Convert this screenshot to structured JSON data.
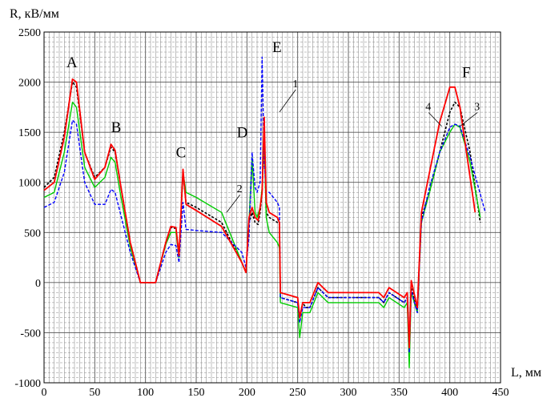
{
  "chart_data": {
    "type": "line",
    "title": "",
    "xlabel": "L, мм",
    "ylabel": "R, кВ/мм",
    "xlim": [
      0,
      450
    ],
    "ylim": [
      -1000,
      2500
    ],
    "x_ticks": [
      0,
      50,
      100,
      150,
      200,
      250,
      300,
      350,
      400,
      450
    ],
    "y_ticks": [
      -1000,
      -500,
      0,
      500,
      1000,
      1500,
      2000,
      2500
    ],
    "x_tick_labels": [
      "0",
      "50",
      "100",
      "150",
      "200",
      "250",
      "300",
      "350",
      "400",
      "450"
    ],
    "y_tick_labels": [
      "-1000",
      "-500",
      "0",
      "500",
      "1000",
      "1500",
      "2000",
      "2500"
    ],
    "grid": true,
    "annotations": [
      {
        "text": "A",
        "x": 22,
        "y": 2150
      },
      {
        "text": "B",
        "x": 66,
        "y": 1500
      },
      {
        "text": "C",
        "x": 130,
        "y": 1250
      },
      {
        "text": "D",
        "x": 190,
        "y": 1450
      },
      {
        "text": "E",
        "x": 225,
        "y": 2300
      },
      {
        "text": "F",
        "x": 412,
        "y": 2050
      }
    ],
    "curve_labels": [
      {
        "text": "1",
        "x": 245,
        "y": 1950,
        "ax": 232,
        "ay": 1700
      },
      {
        "text": "2",
        "x": 190,
        "y": 900,
        "ax": 180,
        "ay": 700
      },
      {
        "text": "3",
        "x": 424,
        "y": 1720,
        "ax": 410,
        "ay": 1560
      },
      {
        "text": "4",
        "x": 376,
        "y": 1720,
        "ax": 392,
        "ay": 1560
      }
    ],
    "series": [
      {
        "color": "#000000",
        "dash": "3,2",
        "x": [
          0,
          10,
          20,
          28,
          32,
          40,
          50,
          60,
          66,
          70,
          75,
          85,
          95,
          100,
          110,
          120,
          125,
          130,
          133,
          137,
          140,
          150,
          175,
          195,
          199,
          202,
          205,
          208,
          211,
          213,
          215,
          217,
          219,
          222,
          230,
          232,
          233,
          250,
          252,
          255,
          258,
          262,
          270,
          280,
          300,
          320,
          330,
          335,
          340,
          355,
          358,
          360,
          362,
          368,
          372,
          380,
          390,
          400,
          405,
          410,
          420,
          430
        ],
        "y": [
          950,
          1050,
          1500,
          2000,
          1950,
          1300,
          1050,
          1150,
          1350,
          1300,
          1000,
          400,
          0,
          0,
          0,
          400,
          550,
          540,
          270,
          1100,
          800,
          750,
          600,
          200,
          100,
          600,
          700,
          600,
          580,
          700,
          900,
          1500,
          700,
          650,
          600,
          580,
          -150,
          -200,
          -350,
          -200,
          -250,
          -250,
          -50,
          -150,
          -150,
          -150,
          -150,
          -200,
          -100,
          -200,
          -150,
          -650,
          -50,
          -280,
          650,
          900,
          1300,
          1700,
          1800,
          1750,
          1300,
          600
        ]
      },
      {
        "color": "#00cc00",
        "dash": "",
        "x": [
          0,
          10,
          20,
          28,
          32,
          40,
          50,
          60,
          66,
          70,
          75,
          85,
          95,
          100,
          110,
          120,
          125,
          130,
          133,
          137,
          140,
          150,
          175,
          195,
          199,
          202,
          205,
          208,
          210,
          213,
          215,
          217,
          219,
          222,
          230,
          232,
          233,
          250,
          252,
          255,
          258,
          262,
          270,
          280,
          300,
          320,
          330,
          335,
          340,
          355,
          358,
          360,
          362,
          368,
          372,
          380,
          390,
          400,
          405,
          410,
          420,
          430
        ],
        "y": [
          850,
          900,
          1300,
          1800,
          1750,
          1150,
          950,
          1050,
          1250,
          1200,
          900,
          350,
          0,
          0,
          0,
          380,
          500,
          500,
          250,
          1100,
          900,
          850,
          700,
          200,
          100,
          600,
          1250,
          700,
          650,
          750,
          950,
          1400,
          650,
          500,
          400,
          350,
          -200,
          -250,
          -550,
          -300,
          -300,
          -300,
          -100,
          -200,
          -200,
          -200,
          -200,
          -250,
          -150,
          -250,
          -200,
          -850,
          -100,
          -300,
          600,
          900,
          1300,
          1500,
          1580,
          1550,
          1200,
          650
        ]
      },
      {
        "color": "#0000ff",
        "dash": "4,2",
        "x": [
          0,
          10,
          20,
          28,
          32,
          40,
          50,
          60,
          66,
          70,
          75,
          85,
          95,
          100,
          110,
          120,
          125,
          130,
          133,
          137,
          140,
          150,
          175,
          195,
          199,
          202,
          205,
          208,
          210,
          213,
          215,
          217,
          219,
          222,
          230,
          232,
          233,
          250,
          252,
          255,
          258,
          262,
          270,
          280,
          300,
          320,
          330,
          335,
          340,
          355,
          358,
          360,
          362,
          368,
          372,
          380,
          390,
          400,
          405,
          410,
          420,
          435
        ],
        "y": [
          750,
          800,
          1100,
          1620,
          1580,
          1000,
          780,
          780,
          930,
          900,
          700,
          300,
          0,
          0,
          0,
          300,
          380,
          370,
          200,
          800,
          530,
          520,
          500,
          300,
          150,
          450,
          1300,
          950,
          900,
          1000,
          2250,
          1200,
          900,
          900,
          800,
          750,
          -150,
          -200,
          -400,
          -250,
          -250,
          -250,
          -50,
          -150,
          -150,
          -150,
          -150,
          -200,
          -100,
          -200,
          -150,
          -700,
          -80,
          -300,
          600,
          950,
          1300,
          1550,
          1580,
          1560,
          1250,
          700
        ]
      },
      {
        "color": "#ff0000",
        "dash": "",
        "x": [
          0,
          10,
          20,
          28,
          32,
          40,
          50,
          60,
          66,
          70,
          75,
          85,
          95,
          100,
          110,
          120,
          125,
          130,
          133,
          137,
          140,
          150,
          175,
          195,
          199,
          202,
          205,
          208,
          211,
          213,
          215,
          217,
          219,
          222,
          230,
          232,
          233,
          250,
          252,
          255,
          258,
          262,
          270,
          280,
          300,
          320,
          330,
          335,
          340,
          355,
          358,
          360,
          362,
          368,
          372,
          380,
          390,
          400,
          405,
          410,
          425
        ],
        "y": [
          920,
          1000,
          1450,
          2030,
          2000,
          1300,
          1030,
          1150,
          1380,
          1320,
          1000,
          400,
          0,
          0,
          0,
          400,
          560,
          550,
          270,
          1130,
          780,
          720,
          560,
          200,
          100,
          650,
          750,
          650,
          620,
          750,
          900,
          1650,
          800,
          700,
          650,
          600,
          -100,
          -150,
          -350,
          -200,
          -200,
          -200,
          0,
          -100,
          -100,
          -100,
          -100,
          -150,
          -50,
          -150,
          -100,
          -650,
          20,
          -250,
          700,
          1100,
          1600,
          1950,
          1950,
          1750,
          700
        ]
      }
    ]
  }
}
